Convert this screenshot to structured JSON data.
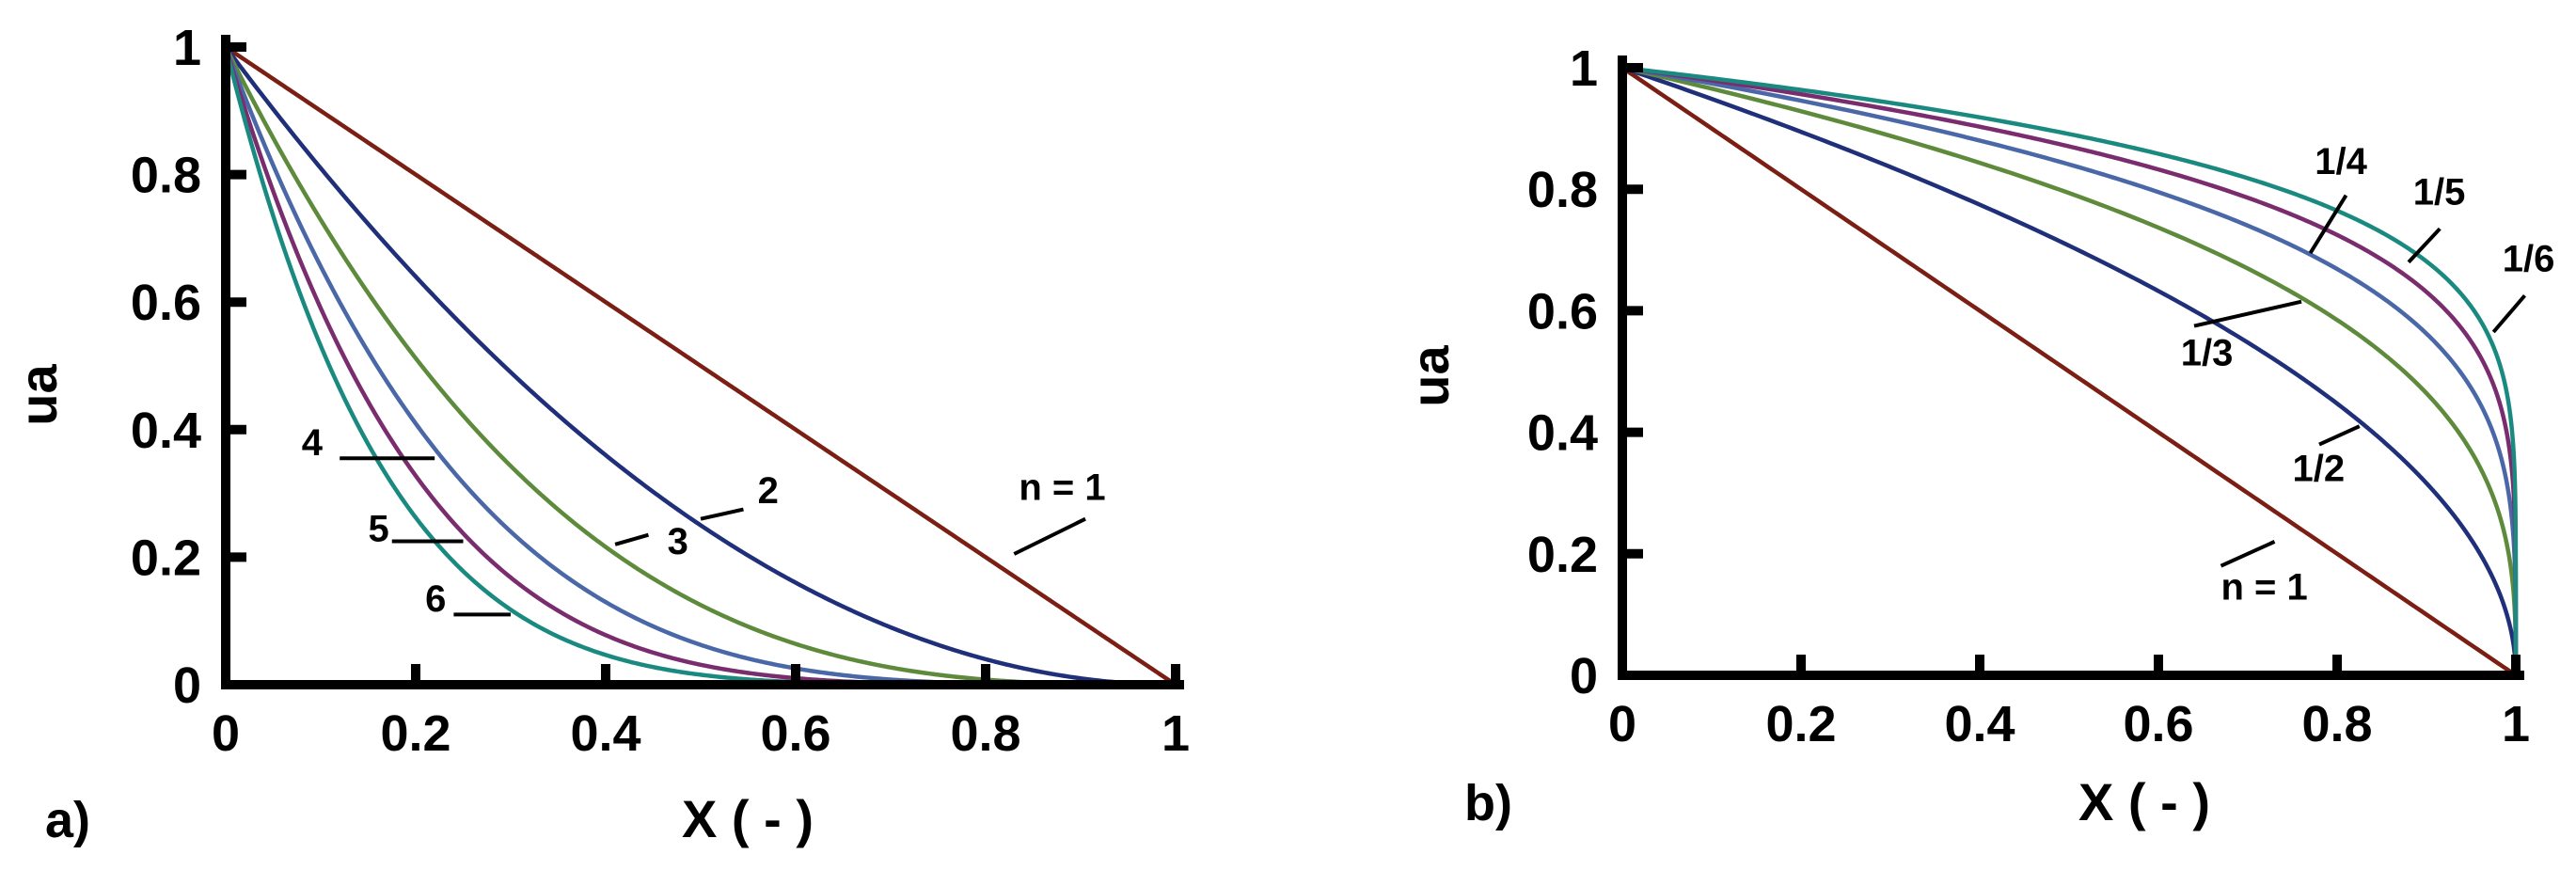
{
  "colors": {
    "n1": "#7B1F14",
    "n2": "#1F2F7A",
    "n3": "#5E8A3C",
    "n4": "#4A68A8",
    "n5": "#7A2D6E",
    "n6": "#1A8A80",
    "axis": "#000000"
  },
  "chart_data": [
    {
      "type": "line",
      "panel_label": "a)",
      "xlabel": "X ( - )",
      "ylabel": "ua",
      "xlim": [
        0,
        1
      ],
      "ylim": [
        0,
        1
      ],
      "x_ticks": [
        "0",
        "0.2",
        "0.4",
        "0.6",
        "0.8",
        "1"
      ],
      "y_ticks": [
        "0",
        "0.2",
        "0.4",
        "0.6",
        "0.8",
        "1"
      ],
      "grid": false,
      "function": "ua = (1 - X)^n",
      "series": [
        {
          "name": "n = 1",
          "n": 1,
          "color": "#7B1F14"
        },
        {
          "name": "2",
          "n": 2,
          "color": "#1F2F7A"
        },
        {
          "name": "3",
          "n": 3,
          "color": "#5E8A3C"
        },
        {
          "name": "4",
          "n": 4,
          "color": "#4A68A8"
        },
        {
          "name": "5",
          "n": 5,
          "color": "#7A2D6E"
        },
        {
          "name": "6",
          "n": 6,
          "color": "#1A8A80"
        }
      ],
      "annotations": [
        {
          "text": "n = 1",
          "tx": 0.835,
          "ty": 0.29,
          "lx1": 0.83,
          "ly1": 0.205,
          "lx2": 0.905,
          "ly2": 0.26
        },
        {
          "text": "2",
          "tx": 0.56,
          "ty": 0.285,
          "lx1": 0.5,
          "ly1": 0.26,
          "lx2": 0.545,
          "ly2": 0.275
        },
        {
          "text": "3",
          "tx": 0.465,
          "ty": 0.205,
          "lx1": 0.41,
          "ly1": 0.22,
          "lx2": 0.445,
          "ly2": 0.235
        },
        {
          "text": "4",
          "tx": 0.08,
          "ty": 0.36,
          "lx1": 0.12,
          "ly1": 0.355,
          "lx2": 0.22,
          "ly2": 0.355
        },
        {
          "text": "5",
          "tx": 0.15,
          "ty": 0.225,
          "lx1": 0.175,
          "ly1": 0.225,
          "lx2": 0.25,
          "ly2": 0.225
        },
        {
          "text": "6",
          "tx": 0.21,
          "ty": 0.115,
          "lx1": 0.24,
          "ly1": 0.11,
          "lx2": 0.3,
          "ly2": 0.11
        }
      ]
    },
    {
      "type": "line",
      "panel_label": "b)",
      "xlabel": "X ( - )",
      "ylabel": "ua",
      "xlim": [
        0,
        1
      ],
      "ylim": [
        0,
        1
      ],
      "x_ticks": [
        "0",
        "0.2",
        "0.4",
        "0.6",
        "0.8",
        "1"
      ],
      "y_ticks": [
        "0",
        "0.2",
        "0.4",
        "0.6",
        "0.8",
        "1"
      ],
      "grid": false,
      "function": "ua = (1 - X)^n",
      "series": [
        {
          "name": "n = 1",
          "n": 1,
          "color": "#7B1F14"
        },
        {
          "name": "1/2",
          "n": 0.5,
          "color": "#1F2F7A"
        },
        {
          "name": "1/3",
          "n": 0.3333,
          "color": "#5E8A3C"
        },
        {
          "name": "1/4",
          "n": 0.25,
          "color": "#4A68A8"
        },
        {
          "name": "1/5",
          "n": 0.2,
          "color": "#7A2D6E"
        },
        {
          "name": "1/6",
          "n": 0.1667,
          "color": "#1A8A80"
        }
      ],
      "annotations": [
        {
          "text": "n = 1",
          "tx": 0.67,
          "ty": 0.125,
          "lx1": 0.67,
          "ly1": 0.18,
          "lx2": 0.73,
          "ly2": 0.22
        },
        {
          "text": "1/2",
          "tx": 0.75,
          "ty": 0.32,
          "lx1": 0.78,
          "ly1": 0.38,
          "lx2": 0.825,
          "ly2": 0.41
        },
        {
          "text": "1/3",
          "tx": 0.625,
          "ty": 0.51,
          "lx1": 0.64,
          "ly1": 0.575,
          "lx2": 0.76,
          "ly2": 0.615
        },
        {
          "text": "1/4",
          "tx": 0.775,
          "ty": 0.825,
          "lx1": 0.81,
          "ly1": 0.79,
          "lx2": 0.77,
          "ly2": 0.695
        },
        {
          "text": "1/5",
          "tx": 0.885,
          "ty": 0.775,
          "lx1": 0.915,
          "ly1": 0.735,
          "lx2": 0.88,
          "ly2": 0.68
        },
        {
          "text": "1/6",
          "tx": 0.985,
          "ty": 0.665,
          "lx1": 1.01,
          "ly1": 0.625,
          "lx2": 0.975,
          "ly2": 0.565
        }
      ]
    }
  ]
}
